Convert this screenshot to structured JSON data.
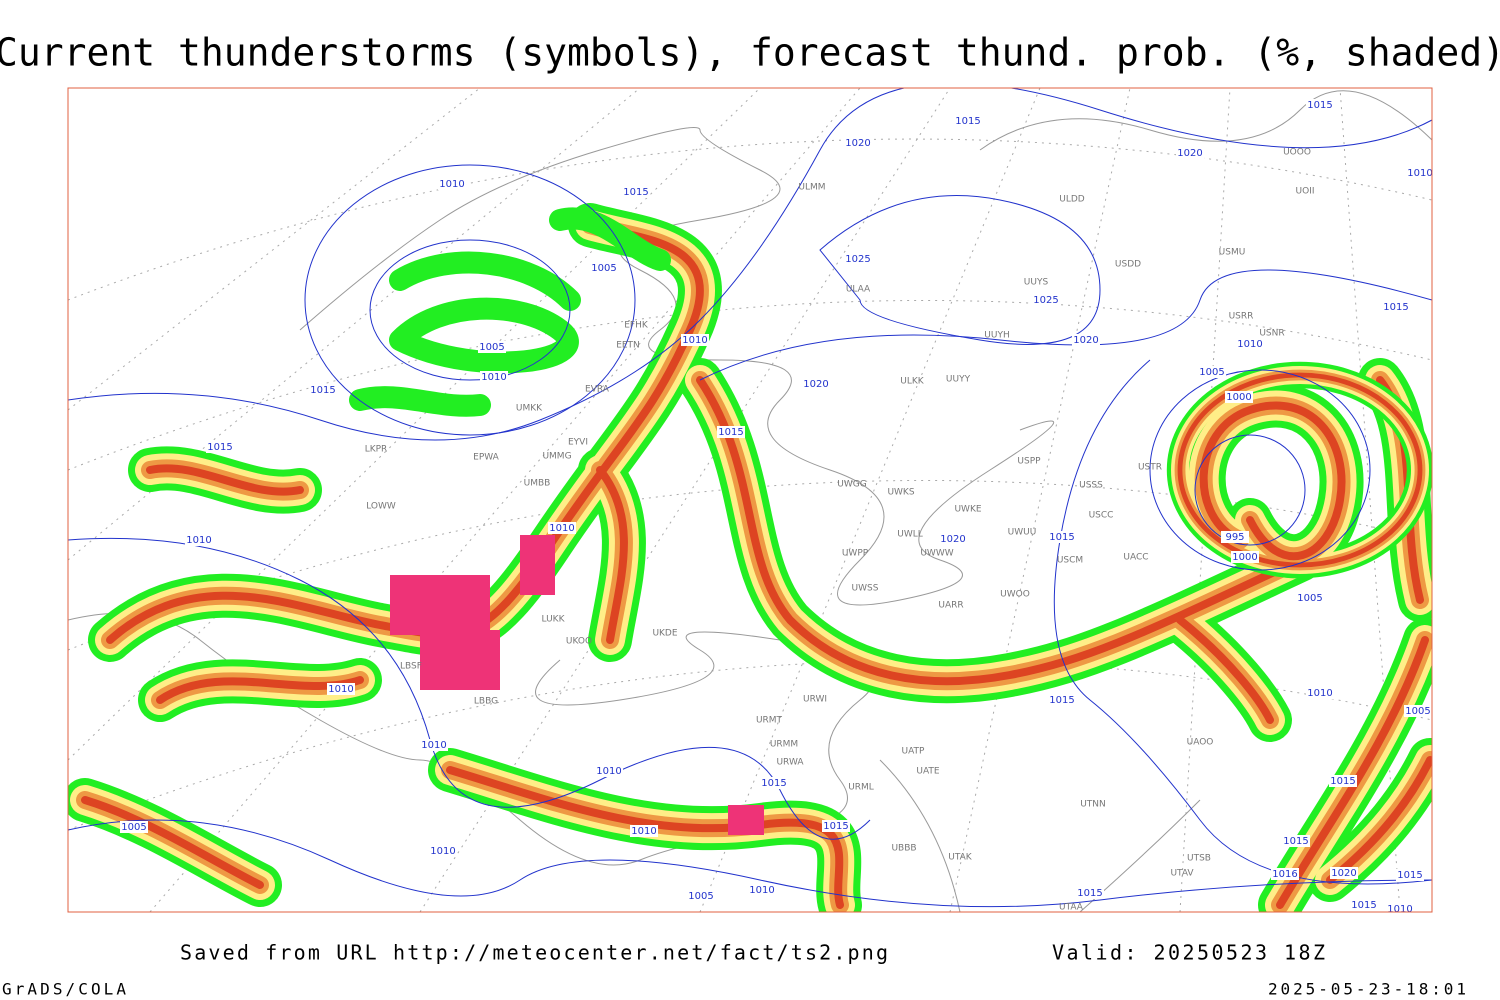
{
  "title": "Current thunderstorms (symbols), forecast thund. prob. (%, shaded)",
  "footer": {
    "saved": "Saved from URL http://meteocenter.net/fact/ts2.png",
    "valid": "Valid: 20250523 18Z",
    "software": "GrADS/COLA",
    "timestamp": "2025-05-23-18:01"
  },
  "isobar_labels": [
    1015,
    1020,
    1015,
    1020,
    1010,
    1010,
    1015,
    1005,
    1025,
    1025,
    1020,
    1015,
    1005,
    1010,
    1010,
    1010,
    1005,
    1000,
    1020,
    1015,
    1015,
    1015,
    1010,
    1010,
    1020,
    1015,
    995,
    1000,
    1005,
    1010,
    1015,
    1010,
    1005,
    1010,
    1010,
    1015,
    1015,
    1005,
    1015,
    1010,
    1015,
    1010,
    1020,
    1015,
    1016,
    1010,
    1005,
    1015,
    1015,
    1010
  ],
  "stations": [
    "ULMM",
    "ULDD",
    "UOOO",
    "UOII",
    "USMU",
    "USDD",
    "ULAA",
    "UUYS",
    "UUYH",
    "USRR",
    "USNR",
    "EFHK",
    "EETN",
    "EVRA",
    "UMKK",
    "EYVI",
    "UMMG",
    "EPWA",
    "LKPR",
    "UMBB",
    "LOWW",
    "UWGG",
    "UWKS",
    "UWKE",
    "UWUU",
    "UWLL",
    "UWWW",
    "UWPP",
    "UWSS",
    "UARR",
    "UWOO",
    "URWI",
    "URMT",
    "URMM",
    "URWA",
    "URML",
    "UATP",
    "UATE",
    "UTNN",
    "UBBB",
    "UTAK",
    "UAOO",
    "USSS",
    "USCC",
    "USCM",
    "UACC",
    "USTR",
    "USPP",
    "UUYY",
    "ULKK",
    "UKOO",
    "LUKK",
    "UKDE",
    "LBSF",
    "LBBG",
    "UTAV",
    "UTSB",
    "UTAA"
  ]
}
